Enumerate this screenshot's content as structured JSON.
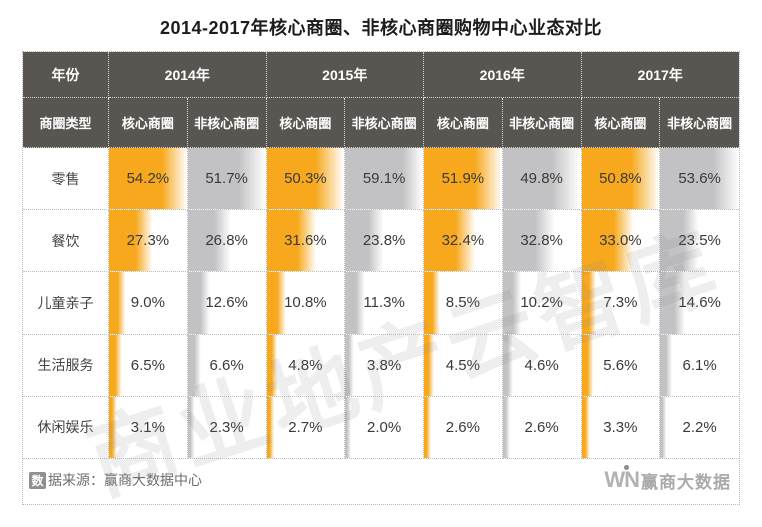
{
  "title": "2014-2017年核心商圈、非核心商圈购物中心业态对比",
  "watermark": "商业地产云智库",
  "chart_data": {
    "type": "table",
    "title": "2014-2017年核心商圈、非核心商圈购物中心业态对比",
    "corner": {
      "top": "年份",
      "bottom": "商圈类型"
    },
    "col_groups": [
      "2014年",
      "2015年",
      "2016年",
      "2017年"
    ],
    "sub_columns": [
      "核心商圈",
      "非核心商圈"
    ],
    "rows": [
      {
        "category": "零售",
        "values": [
          54.2,
          51.7,
          50.3,
          59.1,
          51.9,
          49.8,
          50.8,
          53.6
        ]
      },
      {
        "category": "餐饮",
        "values": [
          27.3,
          26.8,
          31.6,
          23.8,
          32.4,
          32.8,
          33.0,
          23.5
        ]
      },
      {
        "category": "儿童亲子",
        "values": [
          9.0,
          12.6,
          10.8,
          11.3,
          8.5,
          10.2,
          7.3,
          14.6
        ]
      },
      {
        "category": "生活服务",
        "values": [
          6.5,
          6.6,
          4.8,
          3.8,
          4.5,
          4.6,
          5.6,
          6.1
        ]
      },
      {
        "category": "休闲娱乐",
        "values": [
          3.1,
          2.3,
          2.7,
          2.0,
          2.6,
          2.6,
          3.3,
          2.2
        ]
      }
    ],
    "value_suffix": "%",
    "value_decimals": 1,
    "colors": {
      "core_bar": "#F7A81C",
      "noncore_bar": "#C2C2C4",
      "header_bg": "#595551",
      "header_text": "#ffffff"
    }
  },
  "footer": {
    "source_boxed_char": "数",
    "source_text": "据来源：赢商大数据中心"
  },
  "logo": {
    "win_text": "WN",
    "brand_text": "赢商大数据"
  }
}
